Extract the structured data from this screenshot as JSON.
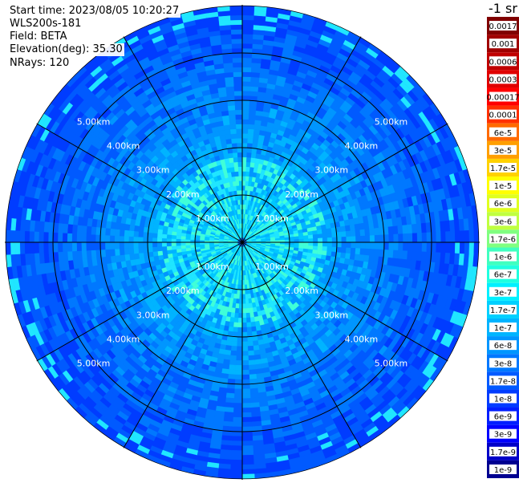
{
  "info": {
    "start_time": "Start time: 2023/08/05 10:20:27",
    "instrument": "WLS200s-181",
    "field": "Field: BETA",
    "elevation": "Elevation(deg): 35.30",
    "nrays": "NRays: 120"
  },
  "colorbar": {
    "unit_label": "-1 sr",
    "levels": [
      {
        "label": "0.0017",
        "color": "#800000"
      },
      {
        "label": "0.001",
        "color": "#a00000"
      },
      {
        "label": "0.0006",
        "color": "#c00000"
      },
      {
        "label": "0.0003",
        "color": "#e00000"
      },
      {
        "label": "0.00017",
        "color": "#ff0000"
      },
      {
        "label": "0.0001",
        "color": "#ff3000"
      },
      {
        "label": "6e-5",
        "color": "#ff6a00"
      },
      {
        "label": "3e-5",
        "color": "#ff9f00"
      },
      {
        "label": "1.7e-5",
        "color": "#ffd200"
      },
      {
        "label": "1e-5",
        "color": "#ffff00"
      },
      {
        "label": "6e-6",
        "color": "#e0ff20"
      },
      {
        "label": "3e-6",
        "color": "#c0ff40"
      },
      {
        "label": "1.7e-6",
        "color": "#80ff80"
      },
      {
        "label": "1e-6",
        "color": "#40ffc0"
      },
      {
        "label": "6e-7",
        "color": "#20ffe0"
      },
      {
        "label": "3e-7",
        "color": "#00f0ff"
      },
      {
        "label": "1.7e-7",
        "color": "#00d0ff"
      },
      {
        "label": "1e-7",
        "color": "#00b4ff"
      },
      {
        "label": "6e-8",
        "color": "#0096ff"
      },
      {
        "label": "3e-8",
        "color": "#0078ff"
      },
      {
        "label": "1.7e-8",
        "color": "#005aff"
      },
      {
        "label": "1e-8",
        "color": "#003cff"
      },
      {
        "label": "6e-9",
        "color": "#001eff"
      },
      {
        "label": "3e-9",
        "color": "#0000ff"
      },
      {
        "label": "1.7e-9",
        "color": "#0000c8"
      },
      {
        "label": "1e-9",
        "color": "#000090"
      }
    ]
  },
  "chart_data": {
    "type": "heatmap",
    "projection": "polar PPI",
    "field": "BETA",
    "n_rays": 120,
    "spoke_angles_deg": [
      0,
      30,
      60,
      90,
      120,
      150,
      180,
      210,
      240,
      270,
      300,
      330
    ],
    "range_rings_km": [
      1.0,
      2.0,
      3.0,
      4.0,
      5.0
    ],
    "ring_labels": [
      "1.00km",
      "2.00km",
      "3.00km",
      "4.00km",
      "5.00km"
    ],
    "max_range_km": 5.0,
    "colors": {
      "ring_line": "#000000",
      "ring_label": "#ffffff"
    }
  }
}
